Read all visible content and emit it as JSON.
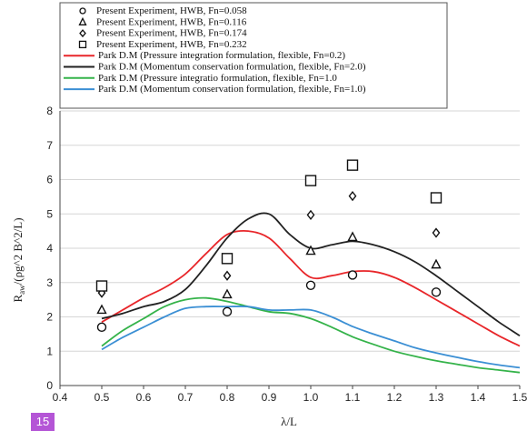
{
  "page_number": "15",
  "chart_data": {
    "type": "line",
    "xlabel": "λ/L",
    "ylabel": "R",
    "ylabel_sub": "aw",
    "ylabel_rest": "/(ρg^2 B^2/L)",
    "xlim": [
      0.4,
      1.5
    ],
    "ylim": [
      0,
      8
    ],
    "xticks": [
      "0.4",
      "0.5",
      "0.6",
      "0.7",
      "0.8",
      "0.9",
      "1.0",
      "1.1",
      "1.2",
      "1.3",
      "1.4",
      "1.5"
    ],
    "yticks": [
      "0",
      "1",
      "2",
      "3",
      "4",
      "5",
      "6",
      "7",
      "8"
    ],
    "grid": "horizontal",
    "legend_position": "top",
    "scatter_series": [
      {
        "name": "Present Experiment, HWB, Fn=0.058",
        "marker": "circle",
        "x": [
          0.5,
          0.8,
          1.0,
          1.1,
          1.3
        ],
        "y": [
          1.7,
          2.15,
          2.92,
          3.22,
          2.72
        ]
      },
      {
        "name": "Present Experiment, HWB, Fn=0.116",
        "marker": "triangle",
        "x": [
          0.5,
          0.8,
          1.0,
          1.1,
          1.3
        ],
        "y": [
          2.2,
          2.65,
          3.92,
          4.32,
          3.52
        ]
      },
      {
        "name": "Present Experiment, HWB, Fn=0.174",
        "marker": "diamond",
        "x": [
          0.5,
          0.8,
          1.0,
          1.1,
          1.3
        ],
        "y": [
          2.7,
          3.2,
          4.97,
          5.52,
          4.45
        ]
      },
      {
        "name": "Present Experiment, HWB, Fn=0.232",
        "marker": "square",
        "x": [
          0.5,
          0.8,
          1.0,
          1.1,
          1.3
        ],
        "y": [
          2.9,
          3.7,
          5.97,
          6.42,
          5.47
        ]
      }
    ],
    "line_series": [
      {
        "name": "Park D.M (Pressure integration formulation, flexible, Fn=0.2)",
        "color": "#e8262a",
        "x": [
          0.5,
          0.55,
          0.6,
          0.65,
          0.7,
          0.75,
          0.8,
          0.85,
          0.9,
          0.95,
          1.0,
          1.05,
          1.1,
          1.15,
          1.2,
          1.25,
          1.3,
          1.35,
          1.4,
          1.45,
          1.5
        ],
        "y": [
          1.85,
          2.2,
          2.55,
          2.85,
          3.25,
          3.85,
          4.4,
          4.5,
          4.3,
          3.7,
          3.15,
          3.2,
          3.32,
          3.32,
          3.15,
          2.85,
          2.5,
          2.15,
          1.8,
          1.45,
          1.15
        ]
      },
      {
        "name": "Park D.M (Momentum conservation formulation, flexible, Fn=2.0)",
        "color": "#222222",
        "x": [
          0.5,
          0.55,
          0.6,
          0.65,
          0.7,
          0.75,
          0.8,
          0.85,
          0.9,
          0.95,
          1.0,
          1.05,
          1.1,
          1.15,
          1.2,
          1.25,
          1.3,
          1.35,
          1.4,
          1.45,
          1.5
        ],
        "y": [
          1.95,
          2.1,
          2.3,
          2.45,
          2.8,
          3.5,
          4.3,
          4.85,
          5.0,
          4.4,
          4.0,
          4.1,
          4.2,
          4.1,
          3.9,
          3.6,
          3.2,
          2.75,
          2.3,
          1.85,
          1.45
        ]
      },
      {
        "name": "Park D.M (Pressure integratio formulation, flexible, Fn=1.0",
        "color": "#35b34a",
        "x": [
          0.5,
          0.55,
          0.6,
          0.65,
          0.7,
          0.75,
          0.8,
          0.85,
          0.9,
          0.95,
          1.0,
          1.05,
          1.1,
          1.15,
          1.2,
          1.25,
          1.3,
          1.35,
          1.4,
          1.45,
          1.5
        ],
        "y": [
          1.15,
          1.6,
          1.95,
          2.3,
          2.5,
          2.55,
          2.45,
          2.3,
          2.15,
          2.1,
          1.95,
          1.7,
          1.42,
          1.2,
          1.0,
          0.85,
          0.72,
          0.62,
          0.52,
          0.45,
          0.38
        ]
      },
      {
        "name": "Park D.M (Momentum conservation formulation, flexible, Fn=1.0)",
        "color": "#3b8fd4",
        "x": [
          0.5,
          0.55,
          0.6,
          0.65,
          0.7,
          0.75,
          0.8,
          0.85,
          0.9,
          0.95,
          1.0,
          1.05,
          1.1,
          1.15,
          1.2,
          1.25,
          1.3,
          1.35,
          1.4,
          1.45,
          1.5
        ],
        "y": [
          1.05,
          1.4,
          1.7,
          2.0,
          2.25,
          2.3,
          2.3,
          2.3,
          2.2,
          2.2,
          2.2,
          2.0,
          1.72,
          1.5,
          1.3,
          1.1,
          0.95,
          0.82,
          0.7,
          0.6,
          0.52
        ]
      }
    ]
  }
}
